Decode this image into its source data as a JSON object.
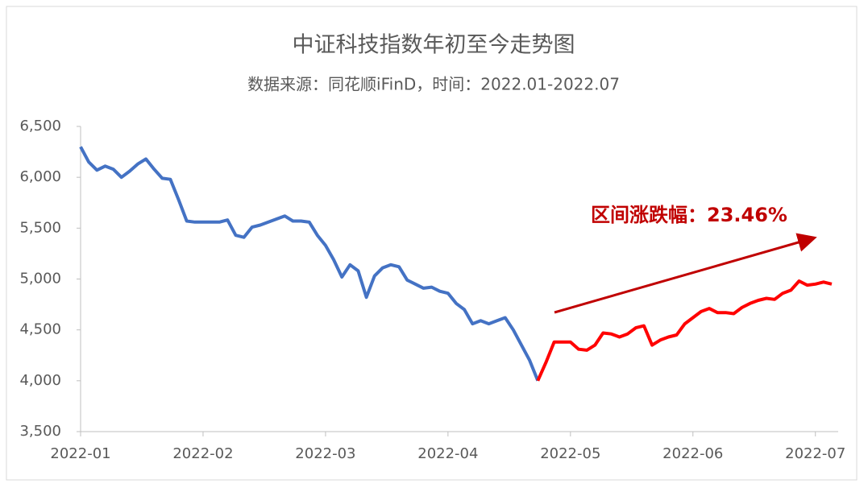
{
  "chart_data": {
    "type": "line",
    "title": "中证科技指数年初至今走势图",
    "subtitle": "数据来源：同花顺iFinD，时间：2022.01-2022.07",
    "annotation": "区间涨跌幅：23.46%",
    "xlim": [
      0,
      92
    ],
    "xticks": [
      {
        "value": 0,
        "label": "2022-01"
      },
      {
        "value": 15,
        "label": "2022-02"
      },
      {
        "value": 30,
        "label": "2022-03"
      },
      {
        "value": 45,
        "label": "2022-04"
      },
      {
        "value": 60,
        "label": "2022-05"
      },
      {
        "value": 75,
        "label": "2022-06"
      },
      {
        "value": 90,
        "label": "2022-07"
      }
    ],
    "ylim": [
      3500,
      6500
    ],
    "yticks": [
      {
        "value": 3500,
        "label": "3,500"
      },
      {
        "value": 4000,
        "label": "4,000"
      },
      {
        "value": 4500,
        "label": "4,500"
      },
      {
        "value": 5000,
        "label": "5,000"
      },
      {
        "value": 5500,
        "label": "5,500"
      },
      {
        "value": 6000,
        "label": "6,000"
      },
      {
        "value": 6500,
        "label": "6,500"
      }
    ],
    "grid": false,
    "series": [
      {
        "color": "#4472c4",
        "values": [
          6300,
          6150,
          6070,
          6110,
          6080,
          6000,
          6060,
          6130,
          6180,
          6080,
          5990,
          5980,
          5780,
          5570,
          5560,
          5560,
          5560,
          5560,
          5580,
          5430,
          5410,
          5510,
          5530,
          5560,
          5590,
          5620,
          5570,
          5570,
          5560,
          5430,
          5330,
          5190,
          5020,
          5140,
          5080,
          4820,
          5030,
          5110,
          5140,
          5120,
          4990,
          4950,
          4910,
          4920,
          4880,
          4860,
          4760,
          4700,
          4560,
          4590,
          4560,
          4590,
          4620,
          4500,
          4350,
          4200,
          4000,
          null,
          null,
          null,
          null,
          null,
          null,
          null,
          null,
          null,
          null,
          null,
          null,
          null,
          null,
          null,
          null,
          null,
          null,
          null,
          null,
          null,
          null,
          null,
          null,
          null,
          null,
          null,
          null,
          null,
          null,
          null,
          null
        ]
      },
      {
        "color": "#ff0000",
        "values": [
          null,
          null,
          null,
          null,
          null,
          null,
          null,
          null,
          null,
          null,
          null,
          null,
          null,
          null,
          null,
          null,
          null,
          null,
          null,
          null,
          null,
          null,
          null,
          null,
          null,
          null,
          null,
          null,
          null,
          null,
          null,
          null,
          null,
          null,
          null,
          null,
          null,
          null,
          null,
          null,
          null,
          null,
          null,
          null,
          null,
          null,
          null,
          null,
          null,
          null,
          null,
          null,
          null,
          null,
          null,
          null,
          4000,
          4180,
          4380,
          4380,
          4380,
          4310,
          4300,
          4350,
          4470,
          4460,
          4430,
          4460,
          4520,
          4540,
          4350,
          4400,
          4430,
          4450,
          4560,
          4620,
          4680,
          4710,
          4670,
          4670,
          4660,
          4720,
          4760,
          4790,
          4810,
          4800,
          4860,
          4890,
          4980,
          4940,
          4950,
          4970,
          4950
        ]
      }
    ]
  }
}
